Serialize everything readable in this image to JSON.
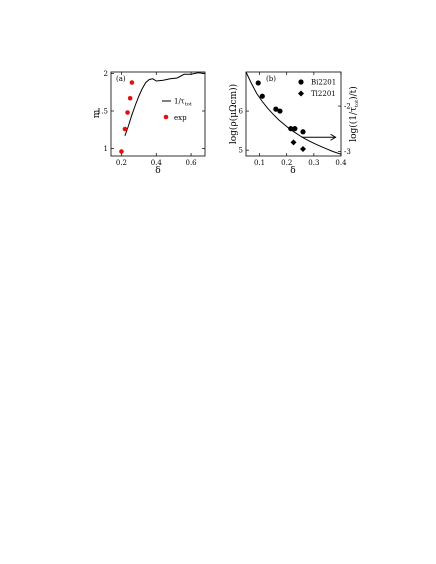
{
  "chart_data": [
    {
      "type": "line",
      "panel_label": "(a)",
      "xlabel": "δ",
      "ylabel": "m",
      "xlim": [
        0.14,
        0.68
      ],
      "ylim": [
        0.9,
        2.02
      ],
      "xticks": [
        0.2,
        0.4,
        0.6
      ],
      "xtick_labels": [
        "0.2",
        "0.4",
        "0.6"
      ],
      "yticks": [
        1,
        1.5,
        2
      ],
      "ytick_labels": [
        "1",
        "1.5",
        "2"
      ],
      "legend_placement": "right",
      "series": [
        {
          "name": "1/τ_tot",
          "name_main": "1/τ",
          "name_sub": "tot",
          "kind": "line",
          "color": "#000000",
          "x": [
            0.22,
            0.24,
            0.26,
            0.28,
            0.3,
            0.32,
            0.34,
            0.36,
            0.38,
            0.4,
            0.44,
            0.48,
            0.52,
            0.56,
            0.6,
            0.64,
            0.68
          ],
          "y": [
            1.17,
            1.3,
            1.45,
            1.58,
            1.7,
            1.8,
            1.88,
            1.92,
            1.93,
            1.9,
            1.91,
            1.93,
            1.94,
            1.99,
            1.99,
            2.01,
            2.0
          ]
        },
        {
          "name": "exp",
          "kind": "scatter",
          "marker": "circle",
          "color": "#e01010",
          "x": [
            0.2,
            0.22,
            0.235,
            0.25,
            0.26
          ],
          "y": [
            0.96,
            1.26,
            1.48,
            1.67,
            1.88
          ]
        }
      ]
    },
    {
      "type": "scatter",
      "panel_label": "(b)",
      "xlabel": "δ",
      "ylabel": "log(ρ(μΩcm))",
      "ylabel_right": "log((1/τ_tot)/t)",
      "ylabel_right_main": "log((1/τ",
      "ylabel_right_sub": "tot",
      "ylabel_right_end": ")/t)",
      "xlim": [
        0.05,
        0.4
      ],
      "ylim": [
        4.85,
        7.0
      ],
      "ylim_right": [
        -3.1,
        -1.25
      ],
      "xticks": [
        0.1,
        0.2,
        0.3,
        0.4
      ],
      "xtick_labels": [
        "0.1",
        "0.2",
        "0.3",
        "0.4"
      ],
      "yticks": [
        5,
        6
      ],
      "ytick_labels": [
        "5",
        "6"
      ],
      "yticks_right": [
        -3,
        -2
      ],
      "ytick_labels_right": [
        "-3",
        "-2"
      ],
      "legend_placement": "top-right",
      "series": [
        {
          "name": "Bi2201",
          "kind": "scatter",
          "marker": "circle",
          "color": "#000000",
          "x": [
            0.095,
            0.11,
            0.16,
            0.175,
            0.215,
            0.23,
            0.26
          ],
          "y": [
            6.72,
            6.38,
            6.05,
            6.0,
            5.55,
            5.55,
            5.47
          ]
        },
        {
          "name": "Tl2201",
          "kind": "scatter",
          "marker": "diamond",
          "color": "#000000",
          "x": [
            0.225,
            0.26
          ],
          "y": [
            5.2,
            5.03
          ]
        },
        {
          "name": "1/τ_tot",
          "kind": "line",
          "axis": "right",
          "color": "#000000",
          "x": [
            0.05,
            0.07,
            0.09,
            0.11,
            0.13,
            0.15,
            0.17,
            0.19,
            0.21,
            0.23,
            0.25,
            0.27,
            0.29,
            0.31,
            0.33,
            0.35,
            0.37,
            0.4
          ],
          "y": [
            -1.25,
            -1.5,
            -1.73,
            -1.9,
            -2.05,
            -2.18,
            -2.3,
            -2.4,
            -2.5,
            -2.58,
            -2.66,
            -2.73,
            -2.79,
            -2.85,
            -2.9,
            -2.95,
            -3.0,
            -3.06
          ]
        }
      ],
      "annotation": {
        "type": "arrow",
        "direction": "right",
        "from": [
          0.255,
          5.33
        ],
        "to": [
          0.38,
          5.33
        ]
      }
    }
  ]
}
